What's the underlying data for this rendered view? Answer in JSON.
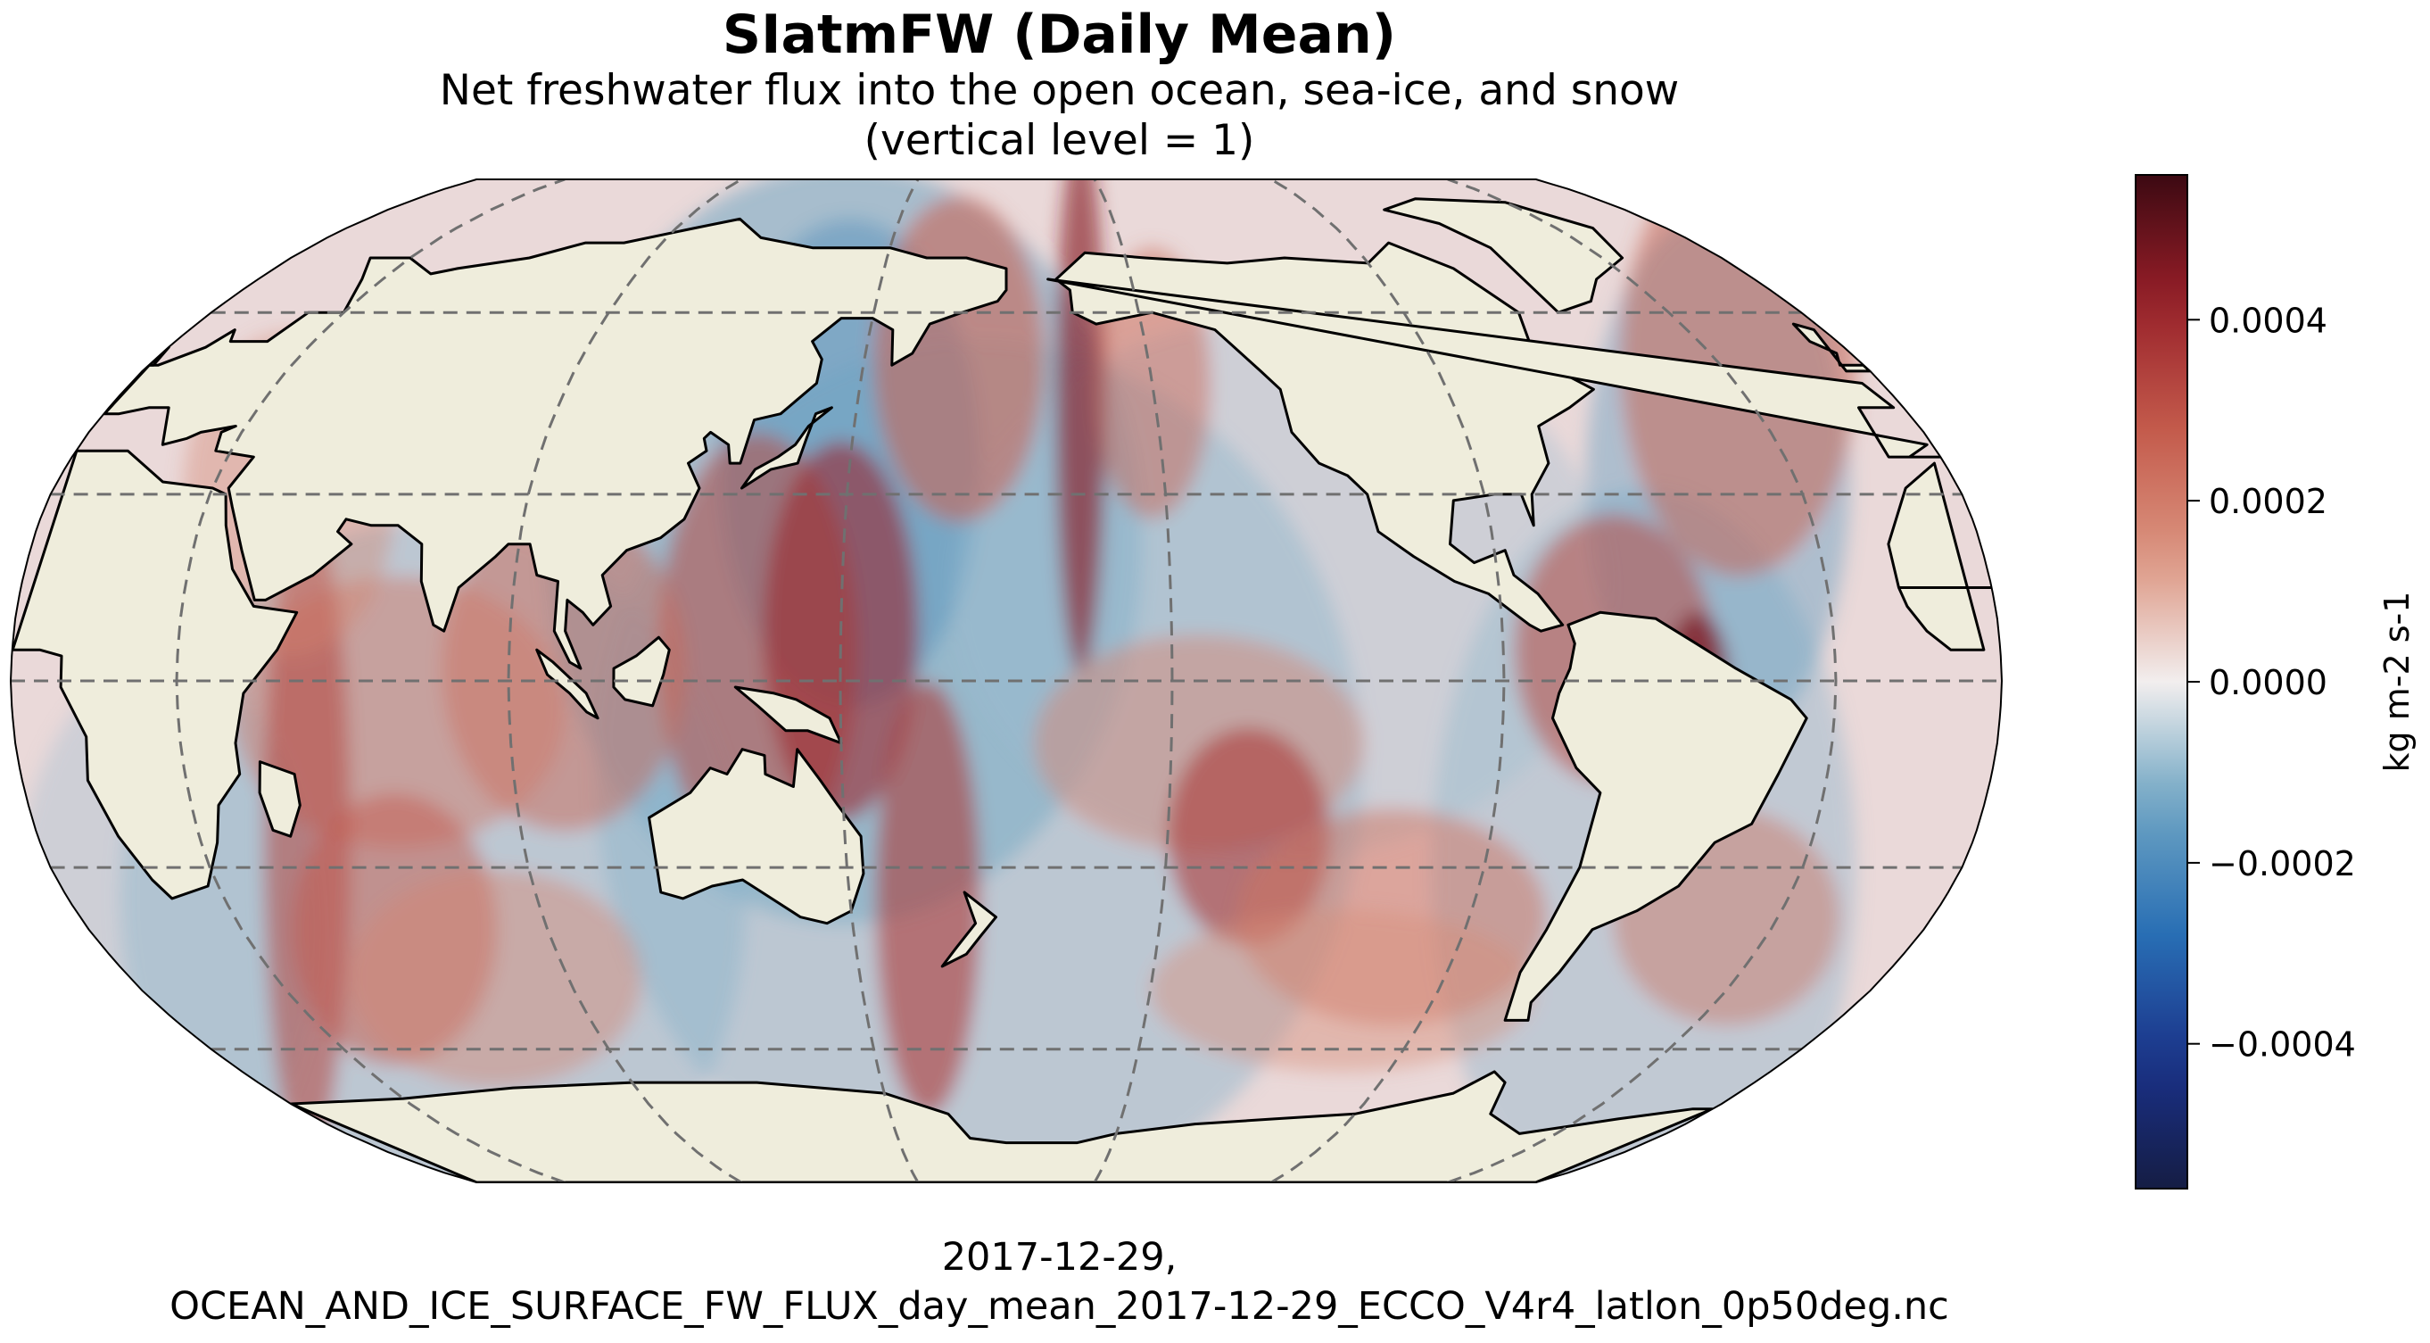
{
  "title": "SIatmFW (Daily Mean)",
  "subtitle_line1": "Net freshwater flux into the open ocean, sea-ice, and snow",
  "subtitle_line2": "(vertical level = 1)",
  "footer_line1": "2017-12-29,",
  "footer_line2": "OCEAN_AND_ICE_SURFACE_FW_FLUX_day_mean_2017-12-29_ECCO_V4r4_latlon_0p50deg.nc",
  "colors": {
    "land": "#efeddc",
    "coast": "#000000",
    "ocean_base": "#ead9d9",
    "grid": "#707070"
  },
  "colorbar": {
    "label": "kg m-2 s-1",
    "ticks": [
      "0.0004",
      "0.0002",
      "0.0000",
      "−0.0002",
      "−0.0004"
    ],
    "tick_values": [
      0.0004,
      0.0002,
      0.0,
      -0.0002,
      -0.0004
    ],
    "vmin": -0.00056,
    "vmax": 0.00056,
    "colormap": "balance"
  },
  "map": {
    "projection": "Robinson",
    "central_longitude": 180,
    "graticule": "dashed"
  }
}
